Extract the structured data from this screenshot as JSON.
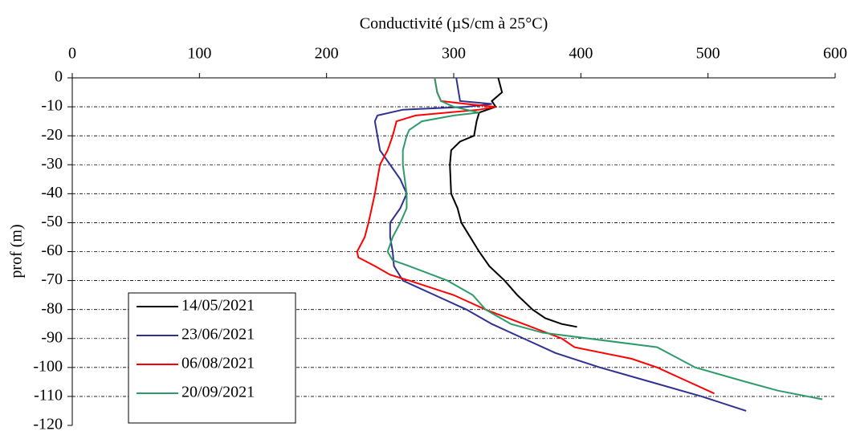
{
  "chart_data": {
    "type": "line",
    "x_label": "Conductivité (µS/cm à 25°C)",
    "y_label": "prof (m)",
    "xlim": [
      0,
      600
    ],
    "xticks": [
      0,
      100,
      200,
      300,
      400,
      500,
      600
    ],
    "ylim": [
      -120,
      0
    ],
    "yticks": [
      0,
      -10,
      -20,
      -30,
      -40,
      -50,
      -60,
      -70,
      -80,
      -90,
      -100,
      -110,
      -120
    ],
    "grid": true,
    "legend": "lower left",
    "series": [
      {
        "name": "14/05/2021",
        "color": "#000000",
        "x": [
          335,
          338,
          330,
          333,
          320,
          318,
          316,
          305,
          298,
          297,
          298,
          303,
          306,
          313,
          320,
          328,
          340,
          350,
          362,
          372,
          385,
          397
        ],
        "values": [
          0,
          -5,
          -8,
          -10,
          -12,
          -15,
          -20,
          -22,
          -25,
          -30,
          -40,
          -45,
          -50,
          -55,
          -60,
          -65,
          -70,
          -75,
          -80,
          -83,
          -85,
          -86
        ]
      },
      {
        "name": "23/06/2021",
        "color": "#2e3192",
        "x": [
          302,
          305,
          330,
          310,
          260,
          240,
          238,
          240,
          242,
          250,
          258,
          263,
          258,
          250,
          250,
          252,
          253,
          260,
          285,
          310,
          330,
          355,
          380,
          415,
          455,
          495,
          530
        ],
        "values": [
          0,
          -8,
          -9,
          -10,
          -11,
          -13,
          -15,
          -20,
          -25,
          -30,
          -35,
          -40,
          -45,
          -50,
          -55,
          -60,
          -65,
          -70,
          -75,
          -80,
          -85,
          -90,
          -95,
          -100,
          -105,
          -110,
          -115
        ]
      },
      {
        "name": "06/08/2021",
        "color": "#ff0000",
        "x": [
          285,
          287,
          290,
          310,
          333,
          320,
          270,
          255,
          252,
          248,
          242,
          238,
          233,
          230,
          224,
          225,
          238,
          250,
          265,
          300,
          325,
          355,
          385,
          395,
          440,
          460,
          485,
          505
        ],
        "values": [
          0,
          -5,
          -8,
          -9,
          -10,
          -11,
          -13,
          -15,
          -20,
          -25,
          -30,
          -40,
          -50,
          -55,
          -60,
          -62,
          -65,
          -68,
          -70,
          -75,
          -80,
          -85,
          -90,
          -93,
          -97,
          -100,
          -105,
          -109
        ]
      },
      {
        "name": "20/09/2021",
        "color": "#2e9a6a",
        "x": [
          285,
          287,
          290,
          300,
          320,
          300,
          275,
          265,
          263,
          260,
          260,
          263,
          263,
          258,
          252,
          248,
          252,
          265,
          295,
          315,
          325,
          345,
          370,
          460,
          490,
          530,
          555,
          590
        ],
        "values": [
          0,
          -5,
          -8,
          -10,
          -12,
          -13,
          -15,
          -18,
          -20,
          -25,
          -30,
          -40,
          -45,
          -50,
          -55,
          -60,
          -63,
          -65,
          -70,
          -75,
          -80,
          -85,
          -88,
          -93,
          -100,
          -105,
          -108,
          -111
        ]
      }
    ]
  }
}
